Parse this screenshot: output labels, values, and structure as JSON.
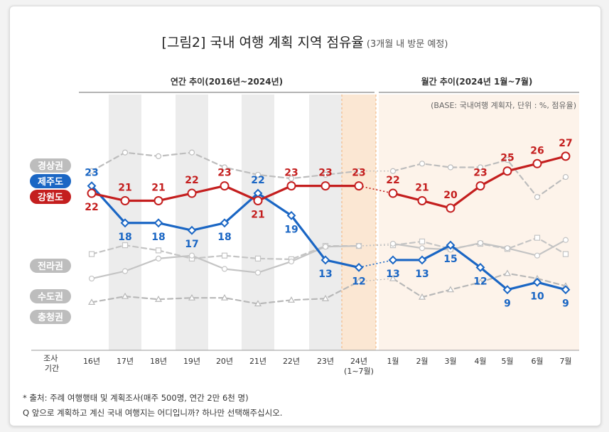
{
  "chart_data": {
    "type": "line",
    "title": "[그림2] 국내 여행 계획 지역 점유율",
    "subtitle": "(3개월 내 방문 예정)",
    "period_labels": {
      "annual": "연간 추이(2016년~2024년)",
      "monthly": "월간 추이(2024년 1월~7월)"
    },
    "base_note": "(BASE: 국내여행 계획자, 단위 : %, 점유율)",
    "x_axis_title": [
      "조사",
      "기간"
    ],
    "categories": [
      "16년",
      "17년",
      "18년",
      "19년",
      "20년",
      "21년",
      "22년",
      "23년",
      "24년\n(1~7월)",
      "1월",
      "2월",
      "3월",
      "4월",
      "5월",
      "6월",
      "7월"
    ],
    "series": [
      {
        "name": "경상권",
        "color": "#bdbdbd",
        "style": "dashed",
        "marker": "circle",
        "labeled": false,
        "values": [
          25,
          27.5,
          27,
          27.5,
          25.5,
          24.5,
          24,
          24.5,
          25,
          25,
          26,
          25.5,
          25.5,
          26.5,
          21.5,
          24.2
        ]
      },
      {
        "name": "제주도",
        "color": "#1a66c4",
        "style": "solid",
        "marker": "diamond",
        "labeled": true,
        "values": [
          23,
          18,
          18,
          17,
          18,
          22,
          19,
          13,
          12,
          13,
          13,
          15,
          12,
          9,
          10,
          9
        ]
      },
      {
        "name": "강원도",
        "color": "#c41e1e",
        "style": "solid",
        "marker": "circle",
        "labeled": true,
        "values": [
          22,
          21,
          21,
          22,
          23,
          21,
          23,
          23,
          23,
          22,
          21,
          20,
          23,
          25,
          26,
          27
        ]
      },
      {
        "name": "전라권",
        "color": "#c4c4c4",
        "style": "dashed",
        "marker": "square",
        "labeled": false,
        "values": [
          13.8,
          15,
          14.3,
          13.2,
          13.6,
          13.2,
          13.1,
          14.9,
          14.9,
          15,
          15.5,
          14.5,
          15.2,
          14.5,
          16,
          13.8
        ]
      },
      {
        "name": "수도권",
        "color": "#c4c4c4",
        "style": "solid",
        "marker": "circle",
        "labeled": false,
        "values": [
          10.5,
          11.5,
          13.2,
          13.6,
          11.8,
          11.3,
          12.8,
          14.8,
          14.9,
          15.2,
          14.6,
          14.4,
          15.3,
          14.6,
          13.6,
          15.7
        ]
      },
      {
        "name": "충청권",
        "color": "#b8b8b8",
        "style": "dashed",
        "marker": "triangle",
        "labeled": false,
        "values": [
          7.3,
          8.1,
          7.7,
          7.9,
          7.9,
          7.1,
          7.6,
          7.8,
          10.1,
          10.5,
          8,
          9,
          10,
          11.2,
          10.5,
          9.5
        ]
      }
    ],
    "ylim": [
      6,
      29
    ],
    "grid": false,
    "legend": "left"
  },
  "footer": {
    "source": "* 출처: 주례 여행행태 및 계획조사(매주 500명, 연간 2만 6천 명)",
    "question": "Q 앞으로 계획하고 계신 국내 여행지는 어디입니까? 하나만 선택해주십시오."
  }
}
